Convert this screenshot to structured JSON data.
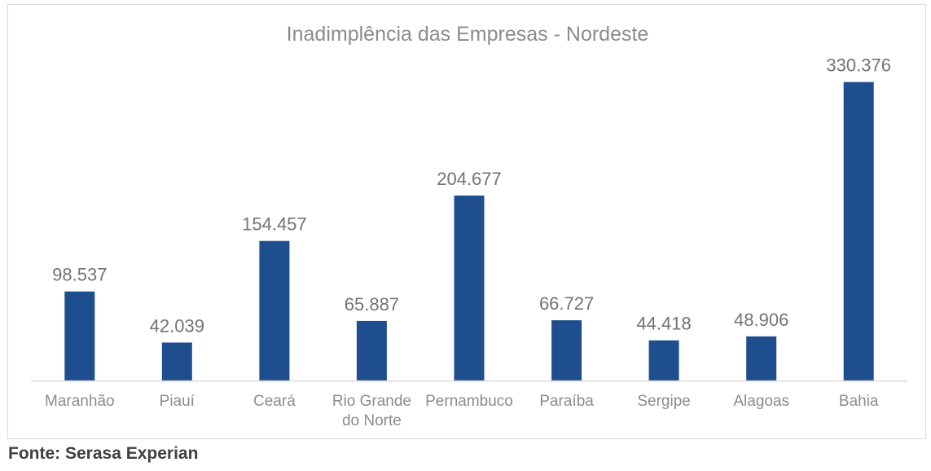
{
  "chart_data": {
    "type": "bar",
    "title": "Inadimplência das Empresas - Nordeste",
    "categories": [
      "Maranhão",
      "Piauí",
      "Ceará",
      "Rio Grande do Norte",
      "Pernambuco",
      "Paraíba",
      "Sergipe",
      "Alagoas",
      "Bahia"
    ],
    "category_label_lines": [
      [
        "Maranhão"
      ],
      [
        "Piauí"
      ],
      [
        "Ceará"
      ],
      [
        "Rio Grande",
        "do Norte"
      ],
      [
        "Pernambuco"
      ],
      [
        "Paraíba"
      ],
      [
        "Sergipe"
      ],
      [
        "Alagoas"
      ],
      [
        "Bahia"
      ]
    ],
    "values": [
      98537,
      42039,
      154457,
      65887,
      204677,
      66727,
      44418,
      48906,
      330376
    ],
    "data_labels": [
      "98.537",
      "42.039",
      "154.457",
      "65.887",
      "204.677",
      "66.727",
      "44.418",
      "48.906",
      "330.376"
    ],
    "xlabel": "",
    "ylabel": "",
    "ylim": [
      0,
      340000
    ],
    "grid": false,
    "legend": "none",
    "bar_color": "#1f4e8f"
  },
  "footer": {
    "source": "Fonte: Serasa Experian"
  }
}
